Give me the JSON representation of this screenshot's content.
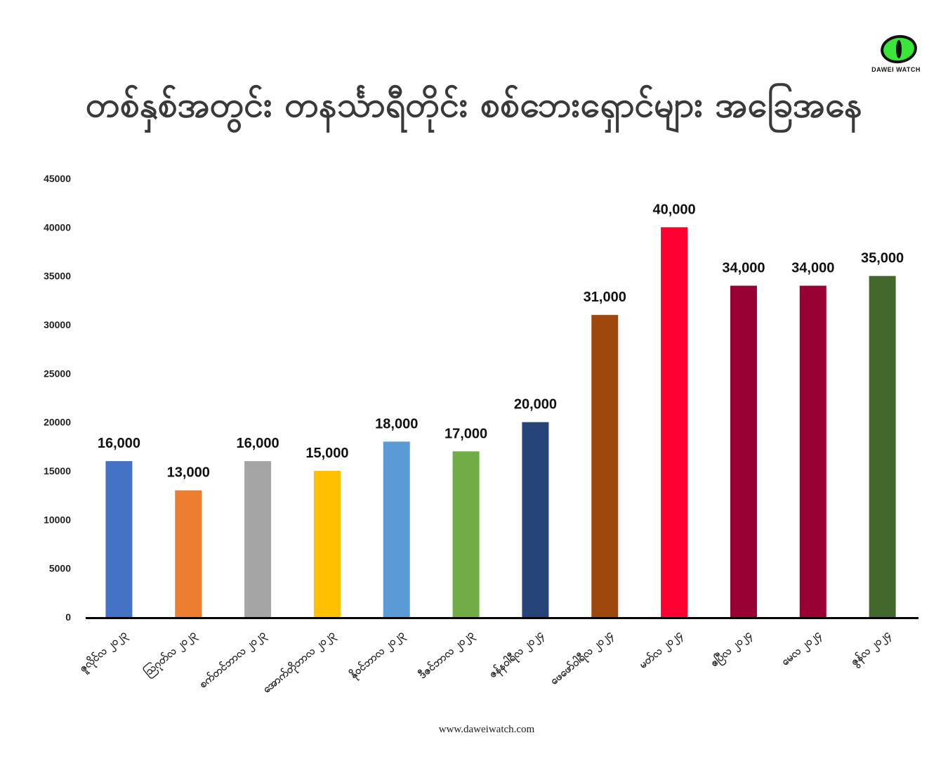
{
  "brand": {
    "logo_text": "DAWEI WATCH",
    "logo_icon": "green-cat-eye-icon",
    "logo_colors": [
      "#39e639",
      "#000000"
    ]
  },
  "title": "တစ်နှစ်အတွင်း တနင်္သာရီတိုင်း စစ်ဘေးရှောင်များ အခြေအနေ",
  "footer": "www.daweiwatch.com",
  "chart_data": {
    "type": "bar",
    "categories": [
      "ဇူလိုင်လ ၂၀၂၃",
      "ဩဂုတ်လ ၂၀၂၃",
      "စက်တင်ဘာလ ၂၀၂၃",
      "အောက်တိုဘာလ ၂၀၂၃",
      "နိုဝင်ဘာလ ၂၀၂၃",
      "ဒီဇင်ဘာလ ၂၀၂၃",
      "ဇန်နဝါရီလ ၂၀၂၄",
      "ဖေဖော်ဝါရီလ ၂၀၂၄",
      "မတ်လ ၂၀၂၄",
      "ဧပြီလ ၂၀၂၄",
      "မေလ ၂၀၂၄",
      "ဇွန်လ ၂၀၂၄"
    ],
    "values": [
      16000,
      13000,
      16000,
      15000,
      18000,
      17000,
      20000,
      31000,
      40000,
      34000,
      34000,
      35000
    ],
    "data_labels": [
      "16,000",
      "13,000",
      "16,000",
      "15,000",
      "18,000",
      "17,000",
      "20,000",
      "31,000",
      "40,000",
      "34,000",
      "34,000",
      "35,000"
    ],
    "colors": [
      "#4472c4",
      "#ed7d31",
      "#a5a5a5",
      "#ffc000",
      "#5b9bd5",
      "#70ad47",
      "#264478",
      "#9e480e",
      "#ff0033",
      "#990033",
      "#990033",
      "#43682b"
    ],
    "ylim": [
      0,
      45000
    ],
    "yticks": [
      "0",
      "5000",
      "10000",
      "15000",
      "20000",
      "25000",
      "30000",
      "35000",
      "40000",
      "45000"
    ],
    "grid": false,
    "legend": "none",
    "title": "",
    "xlabel": "",
    "ylabel": ""
  }
}
